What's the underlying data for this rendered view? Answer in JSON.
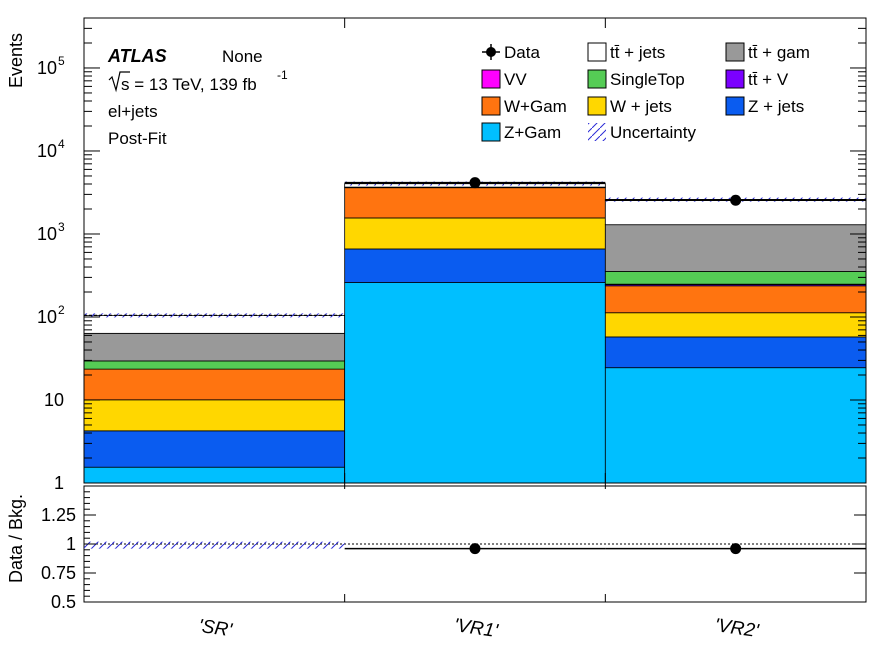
{
  "chart_data": {
    "type": "bar",
    "stacked": true,
    "log_y": true,
    "ylabel": "Events",
    "ratio_ylabel": "Data / Bkg.",
    "categories": [
      "'SR'",
      "'VR1'",
      "'VR2'"
    ],
    "ylim": [
      1,
      400000
    ],
    "ratio_ylim": [
      0.5,
      1.5
    ],
    "ratio_ticks": [
      {
        "value": 0.5,
        "label": "0.5"
      },
      {
        "value": 0.75,
        "label": "0.75"
      },
      {
        "value": 1,
        "label": "1"
      },
      {
        "value": 1.25,
        "label": "1.25"
      }
    ],
    "y_ticks": [
      {
        "value": 1,
        "base": "1",
        "exp": ""
      },
      {
        "value": 10,
        "base": "10",
        "exp": ""
      },
      {
        "value": 100,
        "base": "10",
        "exp": "2"
      },
      {
        "value": 1000,
        "base": "10",
        "exp": "3"
      },
      {
        "value": 10000,
        "base": "10",
        "exp": "4"
      },
      {
        "value": 100000,
        "base": "10",
        "exp": "5"
      }
    ],
    "annotations": {
      "atlas": "ATLAS",
      "status": "None",
      "energy_pre": "s = 13 TeV, 139 fb",
      "energy_exp": "-1",
      "channel": "el+jets",
      "fit": "Post-Fit"
    },
    "series": [
      {
        "name": "Z+Gam",
        "color": "#00bfff",
        "values": [
          1.55,
          260,
          24.5
        ]
      },
      {
        "name": "Z + jets",
        "color": "#0a5cf0",
        "values": [
          2.7,
          400,
          33
        ]
      },
      {
        "name": "W + jets",
        "color": "#ffd700",
        "values": [
          5.8,
          900,
          55
        ]
      },
      {
        "name": "W+Gam",
        "color": "#ff7410",
        "values": [
          13.5,
          2050,
          125
        ]
      },
      {
        "name": "tt̄ + V",
        "color": "#7b00ff",
        "values": [
          0,
          0,
          8
        ]
      },
      {
        "name": "VV",
        "color": "#ff00ff",
        "values": [
          0,
          0,
          3
        ]
      },
      {
        "name": "SingleTop",
        "color": "#55cc55",
        "values": [
          6,
          0,
          105
        ]
      },
      {
        "name": "tt̄ +  gam",
        "color": "#999999",
        "values": [
          34,
          60,
          940
        ]
      },
      {
        "name": "tt̄ + jets",
        "color": "#ffffff",
        "values": [
          41,
          380,
          1300
        ]
      }
    ],
    "data_series": {
      "name": "Data",
      "values": [
        null,
        4150,
        2550
      ]
    },
    "ratio_values": [
      null,
      0.96,
      0.96
    ],
    "uncertainty_label": "Uncertainty",
    "legend": [
      {
        "label": "Data",
        "kind": "data"
      },
      {
        "label": "tt̄ + jets",
        "kind": "box",
        "color": "#ffffff"
      },
      {
        "label": "tt̄ +  gam",
        "kind": "box",
        "color": "#999999"
      },
      {
        "label": "VV",
        "kind": "box",
        "color": "#ff00ff"
      },
      {
        "label": "SingleTop",
        "kind": "box",
        "color": "#55cc55"
      },
      {
        "label": "tt̄ + V",
        "kind": "box",
        "color": "#7b00ff"
      },
      {
        "label": "W+Gam",
        "kind": "box",
        "color": "#ff7410"
      },
      {
        "label": "W + jets",
        "kind": "box",
        "color": "#ffd700"
      },
      {
        "label": "Z + jets",
        "kind": "box",
        "color": "#0a5cf0"
      },
      {
        "label": "Z+Gam",
        "kind": "box",
        "color": "#00bfff"
      },
      {
        "label": "Uncertainty",
        "kind": "hatch"
      }
    ]
  }
}
